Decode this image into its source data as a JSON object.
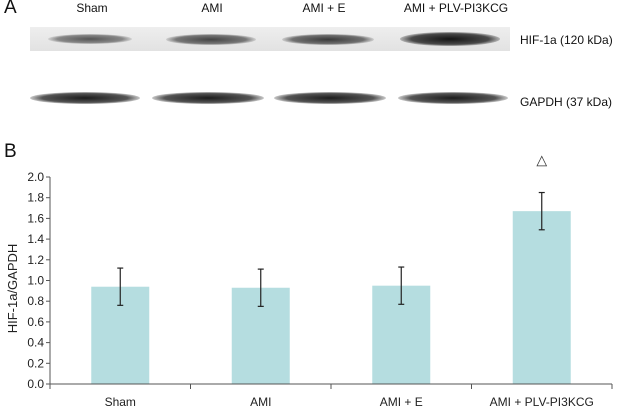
{
  "panel_a": {
    "label": "A",
    "lanes": [
      "Sham",
      "AMI",
      "AMI + E",
      "AMI + PLV-PI3KCG"
    ],
    "blots": [
      {
        "name": "HIF-1a (120 kDa)"
      },
      {
        "name": "GAPDH (37 kDa)"
      }
    ]
  },
  "panel_b": {
    "label": "B"
  },
  "chart_data": {
    "type": "bar",
    "categories": [
      "Sham",
      "AMI",
      "AMI + E",
      "AMI + PLV-PI3KCG"
    ],
    "values": [
      0.94,
      0.93,
      0.95,
      1.67
    ],
    "errors": [
      0.18,
      0.18,
      0.18,
      0.18
    ],
    "annotations": [
      {
        "category": "AMI + PLV-PI3KCG",
        "text": "△"
      }
    ],
    "ylabel": "HIF-1a/GAPDH",
    "xlabel": "",
    "ylim": [
      0,
      2.0
    ],
    "yticks": [
      "0.0",
      "0.2",
      "0.4",
      "0.6",
      "0.8",
      "1.0",
      "1.2",
      "1.4",
      "1.6",
      "1.8",
      "2.0"
    ],
    "grid": false,
    "bar_color": "#b5dde0",
    "error_color": "#222222"
  }
}
